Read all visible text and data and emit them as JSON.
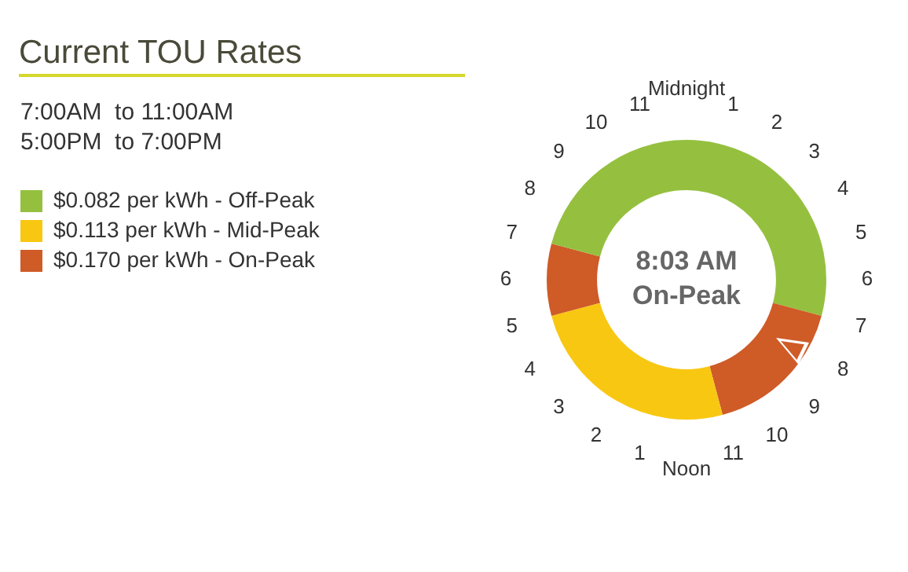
{
  "chart_data": {
    "type": "donut",
    "title": "Current TOU Rates",
    "subtitle": "7:00AM  to 11:00AM\n5:00PM  to 7:00PM",
    "categories": [
      "$0.082 per kWh - Off-Peak",
      "$0.170 per kWh - On-Peak",
      "$0.113 per kWh - Mid-Peak",
      null,
      null
    ],
    "values": [
      29.17,
      16.67,
      25,
      8.33,
      20.83
    ],
    "colors": [
      "#95c03f",
      "#cf5b27",
      "#f8c712",
      "#cf5b27",
      "#95c03f"
    ],
    "legend": "left",
    "annotations": [
      "Midnight",
      "1",
      "2",
      "3",
      "4",
      "5",
      "6",
      "7",
      "8",
      "9",
      "10",
      "11",
      "Noon",
      "1",
      "2",
      "3",
      "4",
      "5",
      "6",
      "7",
      "8",
      "9",
      "10",
      "11",
      "8:03 AM",
      "On-Peak"
    ]
  }
}
